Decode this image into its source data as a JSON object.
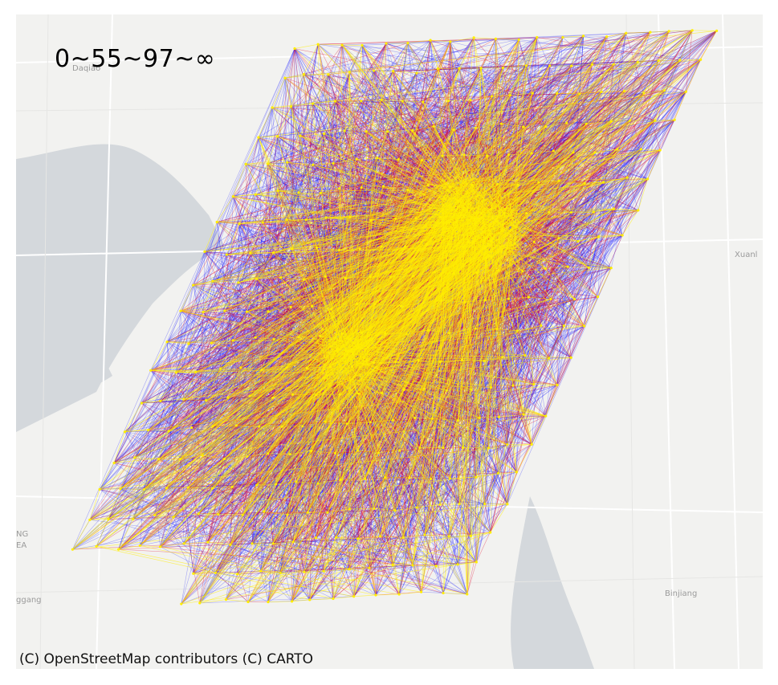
{
  "map": {
    "title_text": "0~55~97~∞",
    "attribution": "(C) OpenStreetMap contributors (C) CARTO",
    "place_labels": [
      "Daqiao",
      "Xuanl",
      "NG",
      "EA",
      "ggang",
      "Binjiang"
    ],
    "colors": {
      "background": "#f2f2f0",
      "river": "#d4d8dc",
      "road": "#ffffff",
      "flow_low": "#1a1aff",
      "flow_mid": "#e01030",
      "flow_high": "#ffee00"
    },
    "flow_classes": [
      "0~55",
      "55~97",
      "97~∞"
    ]
  }
}
